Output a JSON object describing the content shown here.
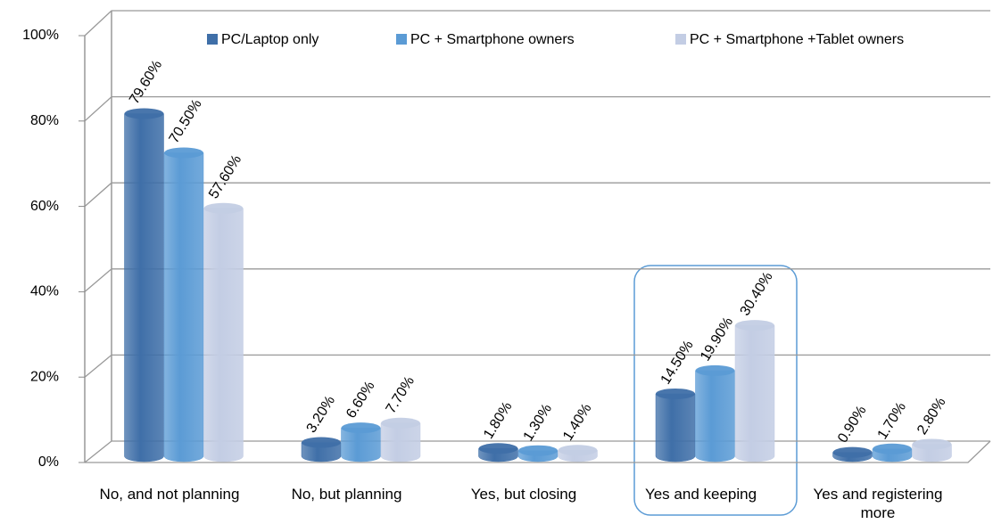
{
  "chart_data": {
    "type": "bar3d",
    "categories": [
      "No, and not planning",
      "No, but planning",
      "Yes, but closing",
      "Yes and keeping",
      "Yes and registering more"
    ],
    "series": [
      {
        "name": "PC/Laptop only",
        "color": "#3f6fa8",
        "values": [
          79.6,
          3.2,
          1.8,
          14.5,
          0.9
        ],
        "value_labels": [
          "79.60%",
          "3.20%",
          "1.80%",
          "14.50%",
          "0.90%"
        ]
      },
      {
        "name": "PC + Smartphone owners",
        "color": "#5b9bd5",
        "values": [
          70.5,
          6.6,
          1.3,
          19.9,
          1.7
        ],
        "value_labels": [
          "70.50%",
          "6.60%",
          "1.30%",
          "19.90%",
          "1.70%"
        ]
      },
      {
        "name": "PC + Smartphone +Tablet owners",
        "color": "#c3cde4",
        "values": [
          57.6,
          7.7,
          1.4,
          30.4,
          2.8
        ],
        "value_labels": [
          "57.60%",
          "7.70%",
          "1.40%",
          "30.40%",
          "2.80%"
        ]
      }
    ],
    "ylim": [
      0,
      100
    ],
    "yticks": [
      {
        "value": 0,
        "label": "0%"
      },
      {
        "value": 20,
        "label": "20%"
      },
      {
        "value": 40,
        "label": "40%"
      },
      {
        "value": 60,
        "label": "60%"
      },
      {
        "value": 80,
        "label": "80%"
      },
      {
        "value": 100,
        "label": "100%"
      }
    ],
    "grid": true,
    "legend": "top"
  }
}
